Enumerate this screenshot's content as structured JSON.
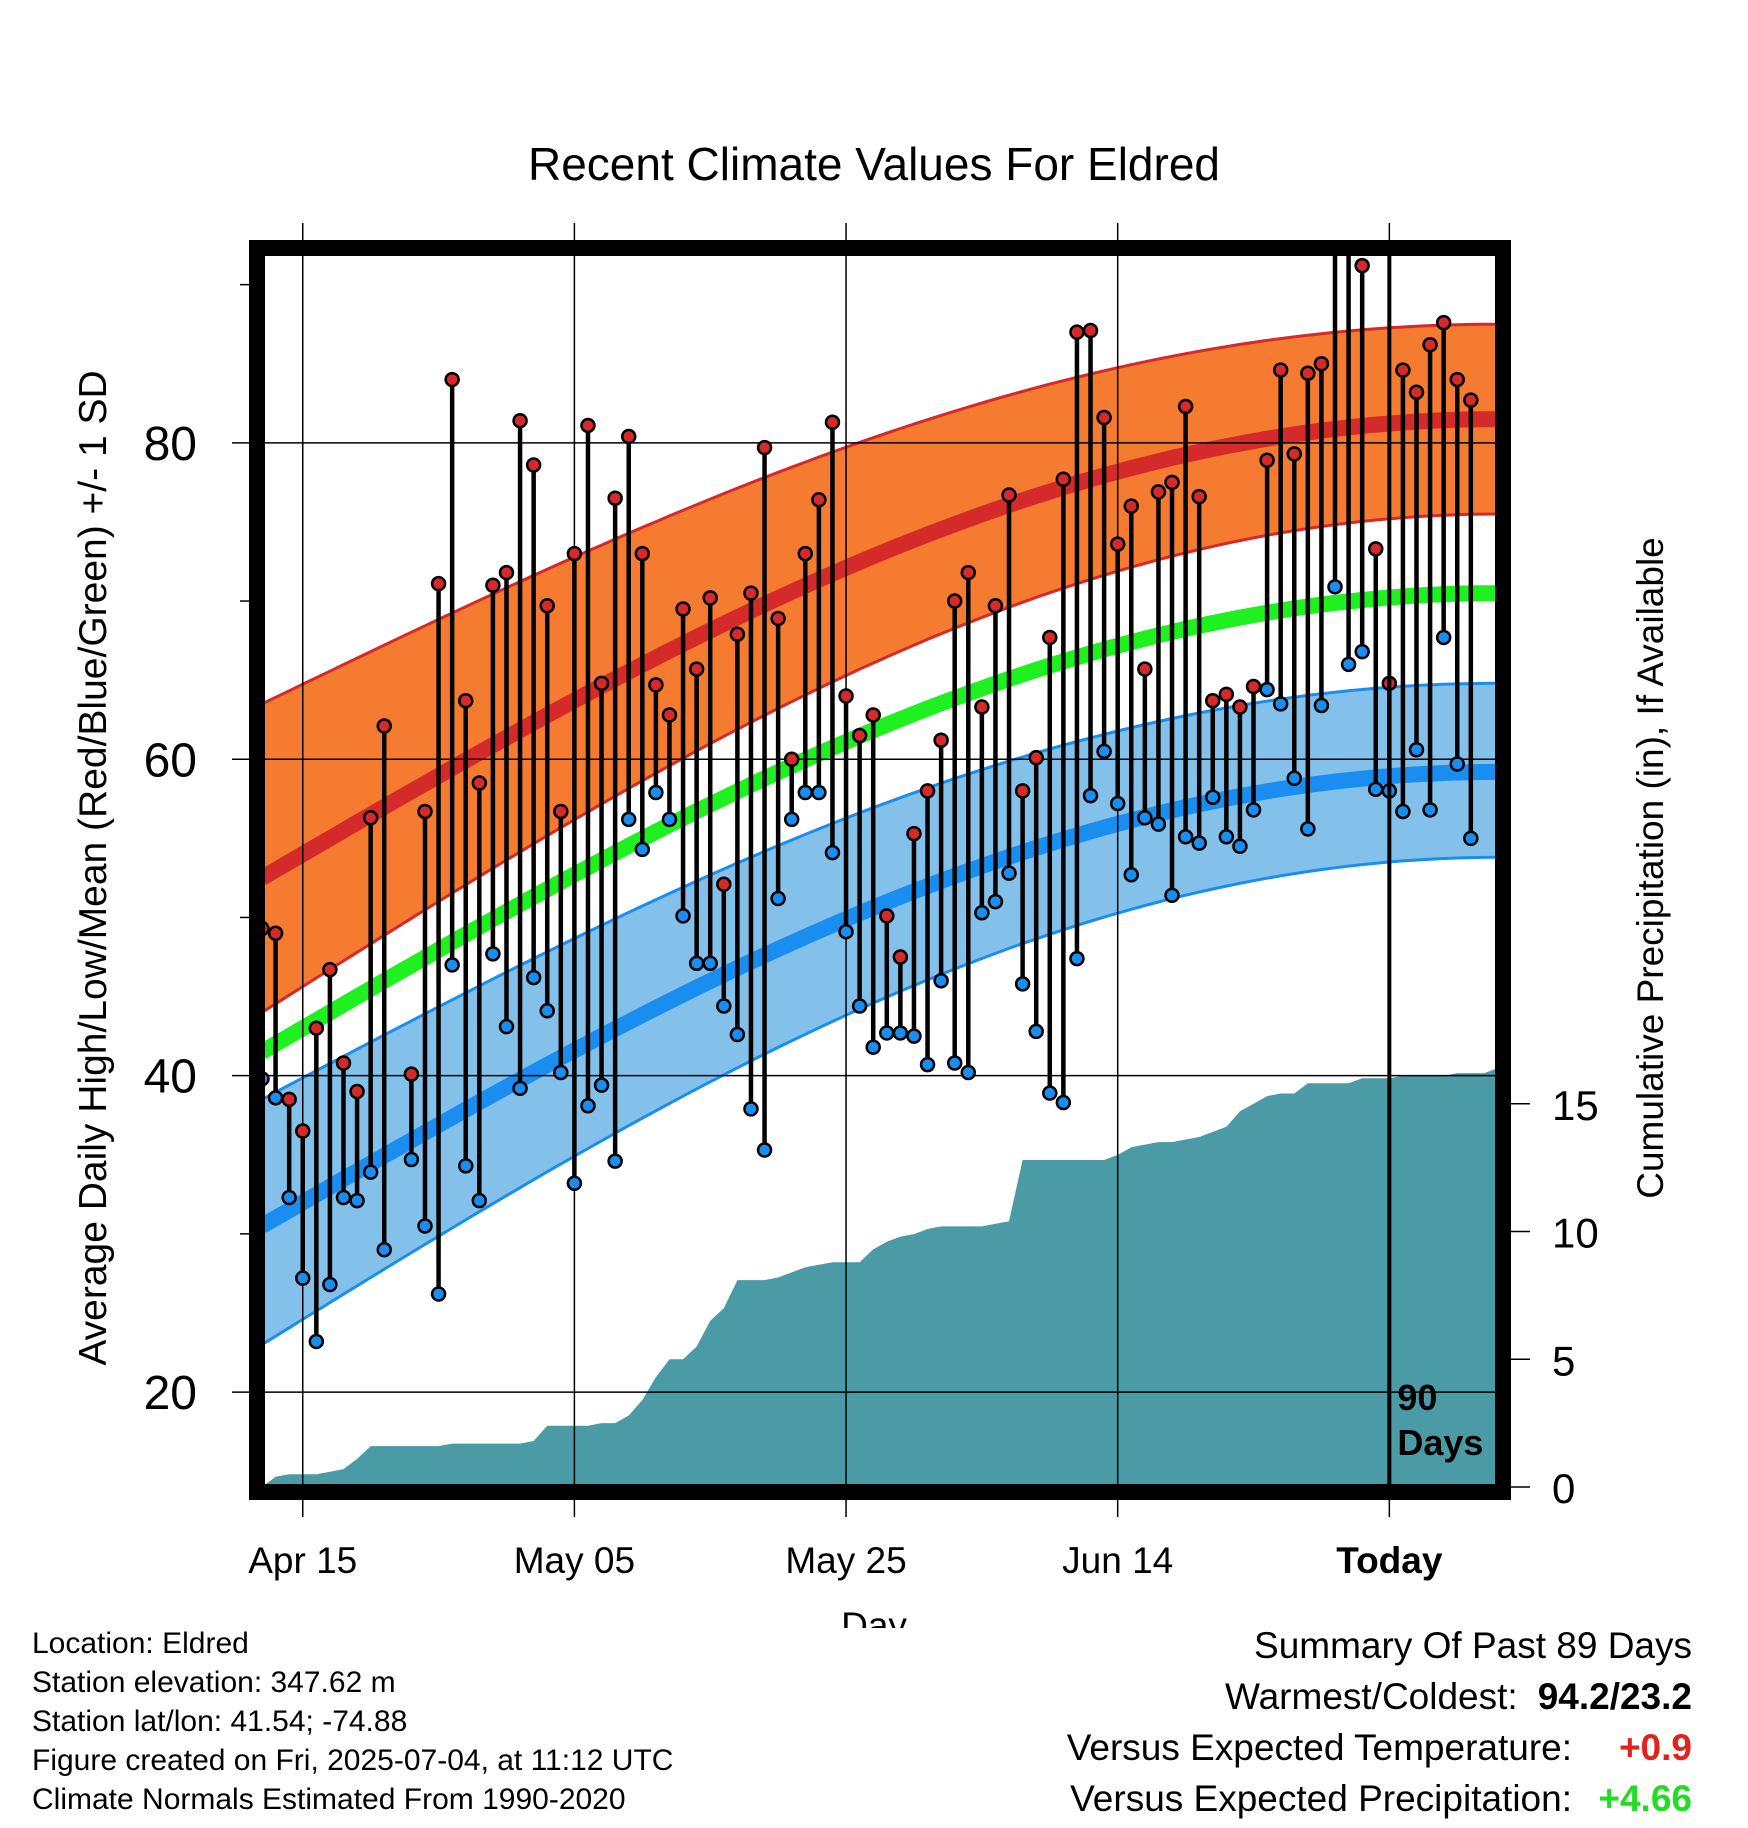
{
  "chart_data": {
    "type": "line",
    "title": "Recent Climate Values For Eldred",
    "xlabel": "Day",
    "ylabel": "Average Daily High/Low/Mean (Red/Blue/Green) +/- 1 SD",
    "y2label": "Cumulative Precipitation (in), If Available",
    "x_tick_labels": [
      "Apr 15",
      "May 05",
      "May 25",
      "Jun 14",
      "Today"
    ],
    "y_ticks": [
      20,
      40,
      60,
      80
    ],
    "y_minor_ticks": [
      30,
      50,
      70,
      90
    ],
    "y2_ticks": [
      0,
      5,
      10,
      15
    ],
    "ylim": [
      14,
      92
    ],
    "y2lim": [
      0,
      16.4
    ],
    "days_annotation": "90 Days",
    "colors": {
      "high": "#d42a2a",
      "high_band": "#f47b30",
      "low": "#1a8ef0",
      "low_band": "#84c1ea",
      "mean": "#1ff01f",
      "precip": "#4a9ba5",
      "high_marker": "#d42a2a",
      "low_marker": "#1a8ef0"
    },
    "normals": {
      "high_start": [
        52.5,
        63.5,
        44.0
      ],
      "high_end": [
        81.5,
        87.5,
        75.5
      ],
      "low_start": [
        30.5,
        38.5,
        23.0
      ],
      "low_end": [
        59.2,
        64.8,
        53.8
      ],
      "mean_start": 41.5,
      "mean_end": 70.5
    },
    "series": [
      {
        "name": "Daily High",
        "values": [
          49.3,
          49.0,
          38.5,
          36.5,
          43.0,
          46.7,
          40.8,
          39.0,
          56.3,
          62.1,
          null,
          40.1,
          56.7,
          71.1,
          84.0,
          63.7,
          58.5,
          71.0,
          71.8,
          81.4,
          78.6,
          69.7,
          56.7,
          73.0,
          81.1,
          64.8,
          76.5,
          80.4,
          73.0,
          64.7,
          62.8,
          69.5,
          65.7,
          70.2,
          52.1,
          67.9,
          70.5,
          79.7,
          68.9,
          60.0,
          73.0,
          76.4,
          81.3,
          64.0,
          61.5,
          62.8,
          50.1,
          47.5,
          55.3,
          58.0,
          61.2,
          70.0,
          71.8,
          63.3,
          69.7,
          76.7,
          58.0,
          60.1,
          67.7,
          77.7,
          87.0,
          87.1,
          81.6,
          73.6,
          76.0,
          65.7,
          76.9,
          77.5,
          82.3,
          76.6,
          63.7,
          64.1,
          63.3,
          64.6,
          78.9,
          84.6,
          79.3,
          84.4,
          85.0,
          93.5,
          94.2,
          91.2,
          73.3,
          64.8,
          84.6,
          83.2,
          86.2,
          87.6,
          84.0,
          82.7
        ]
      },
      {
        "name": "Daily Low",
        "values": [
          39.8,
          38.6,
          32.3,
          27.2,
          23.2,
          26.8,
          32.3,
          32.1,
          33.9,
          29.0,
          null,
          34.7,
          30.5,
          26.2,
          47.0,
          34.3,
          32.1,
          47.7,
          43.1,
          39.2,
          46.2,
          44.1,
          40.2,
          33.2,
          38.1,
          39.4,
          34.6,
          56.2,
          54.3,
          57.9,
          56.2,
          50.1,
          47.1,
          47.1,
          44.4,
          42.6,
          37.9,
          35.3,
          51.2,
          56.2,
          57.9,
          57.9,
          54.1,
          49.1,
          44.4,
          41.8,
          42.7,
          42.7,
          42.5,
          40.7,
          46.0,
          40.8,
          40.2,
          50.3,
          51.0,
          52.8,
          45.8,
          42.8,
          38.9,
          38.3,
          47.4,
          57.7,
          60.5,
          57.2,
          52.7,
          56.3,
          55.9,
          51.4,
          55.1,
          54.7,
          57.6,
          55.1,
          54.5,
          56.8,
          64.4,
          63.5,
          58.8,
          55.6,
          63.4,
          70.9,
          66.0,
          66.8,
          58.1,
          58.0,
          56.7,
          60.6,
          56.8,
          67.7,
          59.7,
          55.0
        ]
      }
    ],
    "precip_cumulative": [
      0.0,
      0.4,
      0.5,
      0.5,
      0.5,
      0.6,
      0.7,
      1.1,
      1.6,
      1.6,
      1.6,
      1.6,
      1.6,
      1.6,
      1.7,
      1.7,
      1.7,
      1.7,
      1.7,
      1.7,
      1.8,
      2.4,
      2.4,
      2.4,
      2.4,
      2.5,
      2.5,
      2.8,
      3.4,
      4.3,
      5.0,
      5.0,
      5.5,
      6.5,
      7.0,
      8.1,
      8.1,
      8.1,
      8.2,
      8.4,
      8.6,
      8.7,
      8.8,
      8.8,
      8.8,
      9.3,
      9.6,
      9.8,
      9.9,
      10.1,
      10.2,
      10.2,
      10.2,
      10.2,
      10.3,
      10.4,
      12.8,
      12.8,
      12.8,
      12.8,
      12.8,
      12.8,
      12.8,
      13.0,
      13.3,
      13.4,
      13.5,
      13.5,
      13.6,
      13.7,
      13.9,
      14.1,
      14.7,
      15.0,
      15.3,
      15.4,
      15.4,
      15.8,
      15.8,
      15.8,
      15.8,
      16.0,
      16.0,
      16.0,
      16.1,
      16.1,
      16.1,
      16.1,
      16.2,
      16.2,
      16.2,
      16.4
    ]
  },
  "footer": {
    "location": "Location: Eldred",
    "elevation": "Station elevation: 347.62 m",
    "latlon": "Station lat/lon: 41.54; -74.88",
    "created": "Figure created on Fri, 2025-07-04, at 11:12 UTC",
    "normals_note": "Climate Normals Estimated From 1990-2020"
  },
  "summary": {
    "heading": "Summary Of Past 89 Days",
    "warm_cold_label": "Warmest/Coldest:",
    "warm_cold_value": "94.2/23.2",
    "temp_label": "Versus Expected Temperature:",
    "temp_value": "+0.9",
    "precip_label": "Versus Expected Precipitation:",
    "precip_value": "+4.66"
  }
}
